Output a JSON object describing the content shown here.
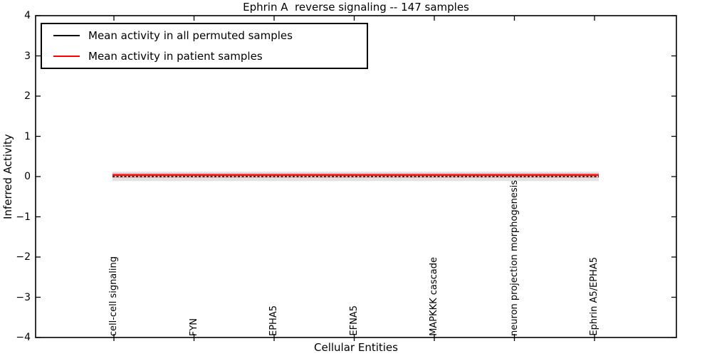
{
  "figure": {
    "title": "Ephrin A  reverse signaling -- 147 samples",
    "xlabel": "Cellular Entities",
    "ylabel": "Inferred Activity"
  },
  "legend": {
    "position": "upper left",
    "entries": [
      {
        "label": "Mean activity in all permuted samples",
        "color": "#000000"
      },
      {
        "label": "Mean activity in patient samples",
        "color": "#ff0000"
      }
    ]
  },
  "chart_data": {
    "type": "line",
    "title": "Ephrin A  reverse signaling -- 147 samples",
    "xlabel": "Cellular Entities",
    "ylabel": "Inferred Activity",
    "ylim": [
      -4,
      4
    ],
    "yticks": [
      {
        "value": 4,
        "label": "4"
      },
      {
        "value": 3,
        "label": "3"
      },
      {
        "value": 2,
        "label": "2"
      },
      {
        "value": 1,
        "label": "1"
      },
      {
        "value": 0,
        "label": "0"
      },
      {
        "value": -1,
        "label": "−1"
      },
      {
        "value": -2,
        "label": "−2"
      },
      {
        "value": -3,
        "label": "−3"
      },
      {
        "value": -4,
        "label": "−4"
      }
    ],
    "categories": [
      "cell-cell signaling",
      "FYN",
      "EPHA5",
      "EFNA5",
      "MAPKKK cascade",
      "neuron projection morphogenesis",
      "Ephrin A5/EPHA5"
    ],
    "series": [
      {
        "name": "Mean activity in all permuted samples",
        "color": "#000000",
        "line_style": "dashed",
        "values": [
          0.0,
          0.0,
          0.0,
          0.0,
          0.0,
          0.0,
          0.0
        ],
        "band": {
          "high": 0.12,
          "low": -0.11,
          "color": "rgba(125,125,125,0.22)"
        }
      },
      {
        "name": "Mean activity in patient samples",
        "color": "#ff0000",
        "line_style": "solid",
        "values": [
          0.04,
          0.04,
          0.04,
          0.04,
          0.04,
          0.04,
          0.04
        ],
        "band": {
          "high": 0.085,
          "low": -0.035,
          "color": "rgba(255,0,0,0.18)"
        }
      }
    ],
    "legend_position": "upper left",
    "grid": false
  }
}
